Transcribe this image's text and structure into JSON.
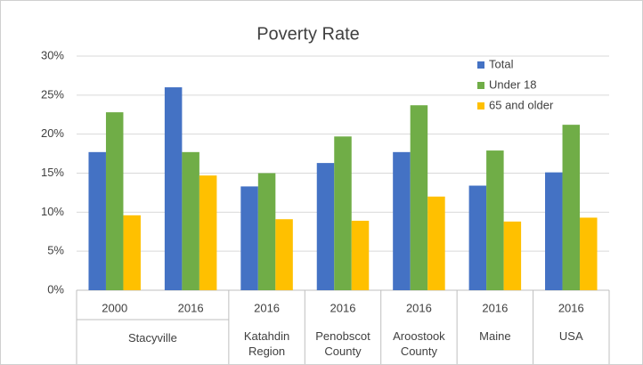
{
  "chart_data": {
    "type": "bar",
    "title": "Poverty Rate",
    "groups": [
      {
        "label": "Stacyville",
        "categories": [
          "2000",
          "2016"
        ]
      },
      {
        "label": "Katahdin Region",
        "categories": [
          "2016"
        ]
      },
      {
        "label": "Penobscot County",
        "categories": [
          "2016"
        ]
      },
      {
        "label": "Aroostook County",
        "categories": [
          "2016"
        ]
      },
      {
        "label": "Maine",
        "categories": [
          "2016"
        ]
      },
      {
        "label": "USA",
        "categories": [
          "2016"
        ]
      }
    ],
    "series": [
      {
        "name": "Total",
        "color": "#4472c4",
        "values": [
          17.7,
          26.0,
          13.3,
          16.3,
          17.7,
          13.4,
          15.1
        ]
      },
      {
        "name": "Under 18",
        "color": "#70ad47",
        "values": [
          22.8,
          17.7,
          15.0,
          19.7,
          23.7,
          17.9,
          21.2
        ]
      },
      {
        "name": "65 and older",
        "color": "#ffc000",
        "values": [
          9.6,
          14.7,
          9.1,
          8.9,
          12.0,
          8.8,
          9.3
        ]
      }
    ],
    "ylim": [
      0,
      30
    ],
    "yticks": [
      {
        "value": 0,
        "label": "0%"
      },
      {
        "value": 5,
        "label": "5%"
      },
      {
        "value": 10,
        "label": "10%"
      },
      {
        "value": 15,
        "label": "15%"
      },
      {
        "value": 20,
        "label": "20%"
      },
      {
        "value": 25,
        "label": "25%"
      },
      {
        "value": 30,
        "label": "30%"
      }
    ],
    "grid": true,
    "legend": "top-right"
  }
}
